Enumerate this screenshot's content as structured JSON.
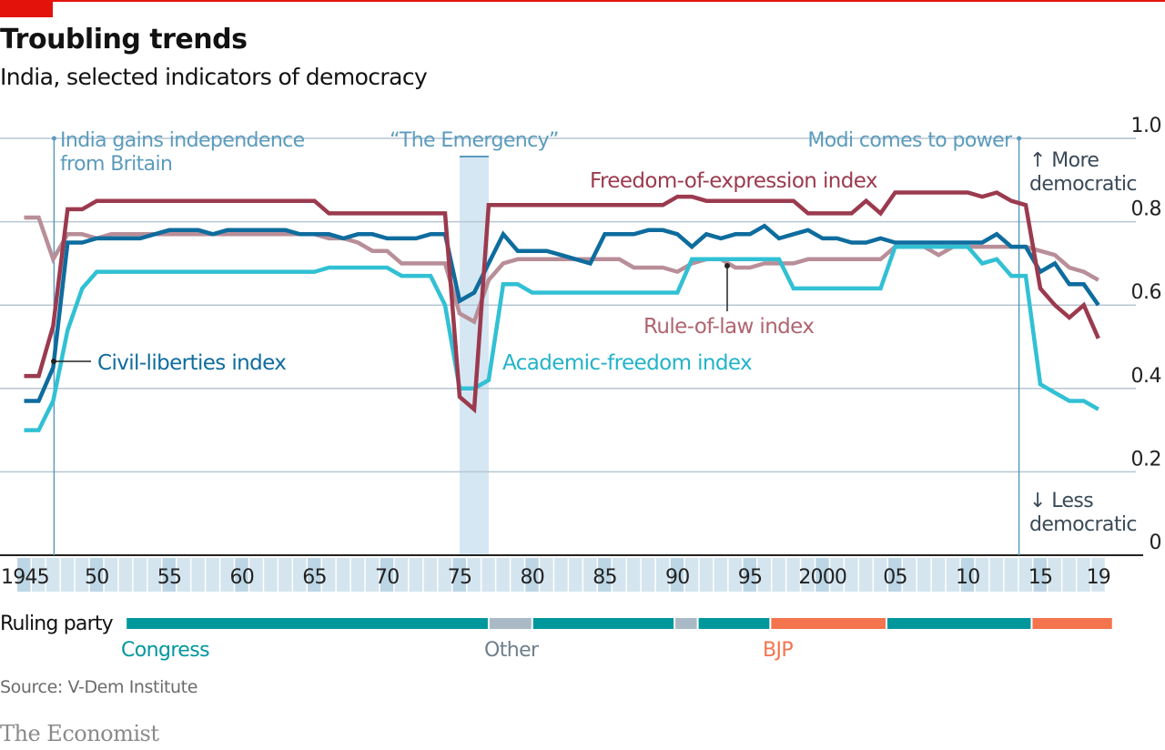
{
  "header": {
    "title": "Troubling trends",
    "subtitle": "India, selected indicators of democracy"
  },
  "footer": {
    "source": "Source: V-Dem Institute",
    "brand": "The Economist"
  },
  "colors": {
    "brand_red": "#e3120b",
    "freedom_of_expression": "#9b3a4e",
    "civil_liberties": "#0e6c9e",
    "academic_freedom": "#31c0d4",
    "rule_of_law": "#b88e98",
    "congress": "#00979c",
    "other": "#a9b9c6",
    "bjp": "#f4744e",
    "annotation": "#5b9bbd",
    "shade": "#d5e7f3"
  },
  "chart_data": {
    "type": "line",
    "title": "Troubling trends",
    "subtitle": "India, selected indicators of democracy",
    "xlabel": "",
    "ylabel": "",
    "xlim": [
      1945,
      2019
    ],
    "ylim": [
      0,
      1.0
    ],
    "y_ticks": [
      "0",
      "0.2",
      "0.4",
      "0.6",
      "0.8",
      "1.0"
    ],
    "x_tick_labels": [
      {
        "year": 1945,
        "label": "1945"
      },
      {
        "year": 1950,
        "label": "50"
      },
      {
        "year": 1955,
        "label": "55"
      },
      {
        "year": 1960,
        "label": "60"
      },
      {
        "year": 1965,
        "label": "65"
      },
      {
        "year": 1970,
        "label": "70"
      },
      {
        "year": 1975,
        "label": "75"
      },
      {
        "year": 1980,
        "label": "80"
      },
      {
        "year": 1985,
        "label": "85"
      },
      {
        "year": 1990,
        "label": "90"
      },
      {
        "year": 1995,
        "label": "95"
      },
      {
        "year": 2000,
        "label": "2000"
      },
      {
        "year": 2005,
        "label": "05"
      },
      {
        "year": 2010,
        "label": "10"
      },
      {
        "year": 2015,
        "label": "15"
      },
      {
        "year": 2019,
        "label": "19"
      }
    ],
    "grid": true,
    "legend": "inline labels",
    "y_direction_labels": {
      "up": "↑ More democratic",
      "down": "↓ Less democratic"
    },
    "annotations": [
      {
        "label": "India gains independence from Britain",
        "year": 1947
      },
      {
        "label": "“The Emergency”",
        "from": 1975,
        "to": 1977
      },
      {
        "label": "Modi comes to power",
        "year": 2014
      }
    ],
    "x": [
      1945,
      1946,
      1947,
      1948,
      1949,
      1950,
      1951,
      1952,
      1953,
      1954,
      1955,
      1956,
      1957,
      1958,
      1959,
      1960,
      1961,
      1962,
      1963,
      1964,
      1965,
      1966,
      1967,
      1968,
      1969,
      1970,
      1971,
      1972,
      1973,
      1974,
      1975,
      1976,
      1977,
      1978,
      1979,
      1980,
      1981,
      1982,
      1983,
      1984,
      1985,
      1986,
      1987,
      1988,
      1989,
      1990,
      1991,
      1992,
      1993,
      1994,
      1995,
      1996,
      1997,
      1998,
      1999,
      2000,
      2001,
      2002,
      2003,
      2004,
      2005,
      2006,
      2007,
      2008,
      2009,
      2010,
      2011,
      2012,
      2013,
      2014,
      2015,
      2016,
      2017,
      2018,
      2019
    ],
    "series": [
      {
        "name": "Freedom-of-expression index",
        "key": "freedom_of_expression",
        "values": [
          0.43,
          0.43,
          0.55,
          0.83,
          0.83,
          0.85,
          0.85,
          0.85,
          0.85,
          0.85,
          0.85,
          0.85,
          0.85,
          0.85,
          0.85,
          0.85,
          0.85,
          0.85,
          0.85,
          0.85,
          0.85,
          0.82,
          0.82,
          0.82,
          0.82,
          0.82,
          0.82,
          0.82,
          0.82,
          0.82,
          0.38,
          0.35,
          0.84,
          0.84,
          0.84,
          0.84,
          0.84,
          0.84,
          0.84,
          0.84,
          0.84,
          0.84,
          0.84,
          0.84,
          0.84,
          0.86,
          0.86,
          0.85,
          0.85,
          0.85,
          0.85,
          0.85,
          0.85,
          0.85,
          0.82,
          0.82,
          0.82,
          0.82,
          0.85,
          0.82,
          0.87,
          0.87,
          0.87,
          0.87,
          0.87,
          0.87,
          0.86,
          0.87,
          0.85,
          0.84,
          0.64,
          0.6,
          0.57,
          0.6,
          0.52
        ]
      },
      {
        "name": "Civil-liberties index",
        "key": "civil_liberties",
        "values": [
          0.37,
          0.37,
          0.45,
          0.75,
          0.75,
          0.76,
          0.76,
          0.76,
          0.76,
          0.77,
          0.78,
          0.78,
          0.78,
          0.77,
          0.78,
          0.78,
          0.78,
          0.78,
          0.78,
          0.77,
          0.77,
          0.77,
          0.76,
          0.77,
          0.77,
          0.76,
          0.76,
          0.76,
          0.77,
          0.77,
          0.61,
          0.63,
          0.7,
          0.77,
          0.73,
          0.73,
          0.73,
          0.72,
          0.71,
          0.7,
          0.77,
          0.77,
          0.77,
          0.78,
          0.78,
          0.77,
          0.74,
          0.77,
          0.76,
          0.77,
          0.77,
          0.79,
          0.76,
          0.77,
          0.78,
          0.76,
          0.76,
          0.75,
          0.75,
          0.76,
          0.75,
          0.75,
          0.75,
          0.75,
          0.75,
          0.75,
          0.75,
          0.77,
          0.74,
          0.74,
          0.68,
          0.7,
          0.65,
          0.65,
          0.6
        ]
      },
      {
        "name": "Academic-freedom index",
        "key": "academic_freedom",
        "values": [
          0.3,
          0.3,
          0.37,
          0.54,
          0.64,
          0.68,
          0.68,
          0.68,
          0.68,
          0.68,
          0.68,
          0.68,
          0.68,
          0.68,
          0.68,
          0.68,
          0.68,
          0.68,
          0.68,
          0.68,
          0.68,
          0.69,
          0.69,
          0.69,
          0.69,
          0.69,
          0.67,
          0.67,
          0.67,
          0.6,
          0.4,
          0.4,
          0.42,
          0.65,
          0.65,
          0.63,
          0.63,
          0.63,
          0.63,
          0.63,
          0.63,
          0.63,
          0.63,
          0.63,
          0.63,
          0.63,
          0.71,
          0.71,
          0.71,
          0.71,
          0.71,
          0.71,
          0.71,
          0.64,
          0.64,
          0.64,
          0.64,
          0.64,
          0.64,
          0.64,
          0.74,
          0.74,
          0.74,
          0.74,
          0.74,
          0.74,
          0.7,
          0.71,
          0.67,
          0.67,
          0.41,
          0.39,
          0.37,
          0.37,
          0.35
        ]
      },
      {
        "name": "Rule-of-law index",
        "key": "rule_of_law",
        "values": [
          0.81,
          0.81,
          0.71,
          0.77,
          0.77,
          0.76,
          0.77,
          0.77,
          0.77,
          0.77,
          0.77,
          0.77,
          0.77,
          0.77,
          0.77,
          0.77,
          0.77,
          0.77,
          0.77,
          0.77,
          0.77,
          0.76,
          0.76,
          0.75,
          0.73,
          0.73,
          0.7,
          0.7,
          0.7,
          0.7,
          0.58,
          0.56,
          0.66,
          0.7,
          0.71,
          0.71,
          0.71,
          0.71,
          0.71,
          0.71,
          0.71,
          0.71,
          0.69,
          0.69,
          0.69,
          0.68,
          0.7,
          0.71,
          0.71,
          0.69,
          0.69,
          0.7,
          0.7,
          0.7,
          0.71,
          0.71,
          0.71,
          0.71,
          0.71,
          0.71,
          0.74,
          0.74,
          0.74,
          0.72,
          0.74,
          0.74,
          0.74,
          0.74,
          0.74,
          0.74,
          0.73,
          0.72,
          0.69,
          0.68,
          0.66
        ]
      }
    ],
    "ruling_party": {
      "label": "Ruling party",
      "segments": [
        {
          "party": "Congress",
          "from": 1952,
          "to": 1977
        },
        {
          "party": "Other",
          "from": 1977,
          "to": 1980
        },
        {
          "party": "Congress",
          "from": 1980,
          "to": 1989.8
        },
        {
          "party": "Other",
          "from": 1989.8,
          "to": 1991.4
        },
        {
          "party": "Congress",
          "from": 1991.4,
          "to": 1996.4
        },
        {
          "party": "BJP",
          "from": 1996.4,
          "to": 2004.4
        },
        {
          "party": "Congress",
          "from": 2004.4,
          "to": 2014.4
        },
        {
          "party": "BJP",
          "from": 2014.4,
          "to": 2020
        }
      ],
      "legend": [
        {
          "party": "Congress",
          "label": "Congress"
        },
        {
          "party": "Other",
          "label": "Other"
        },
        {
          "party": "BJP",
          "label": "BJP"
        }
      ]
    }
  }
}
